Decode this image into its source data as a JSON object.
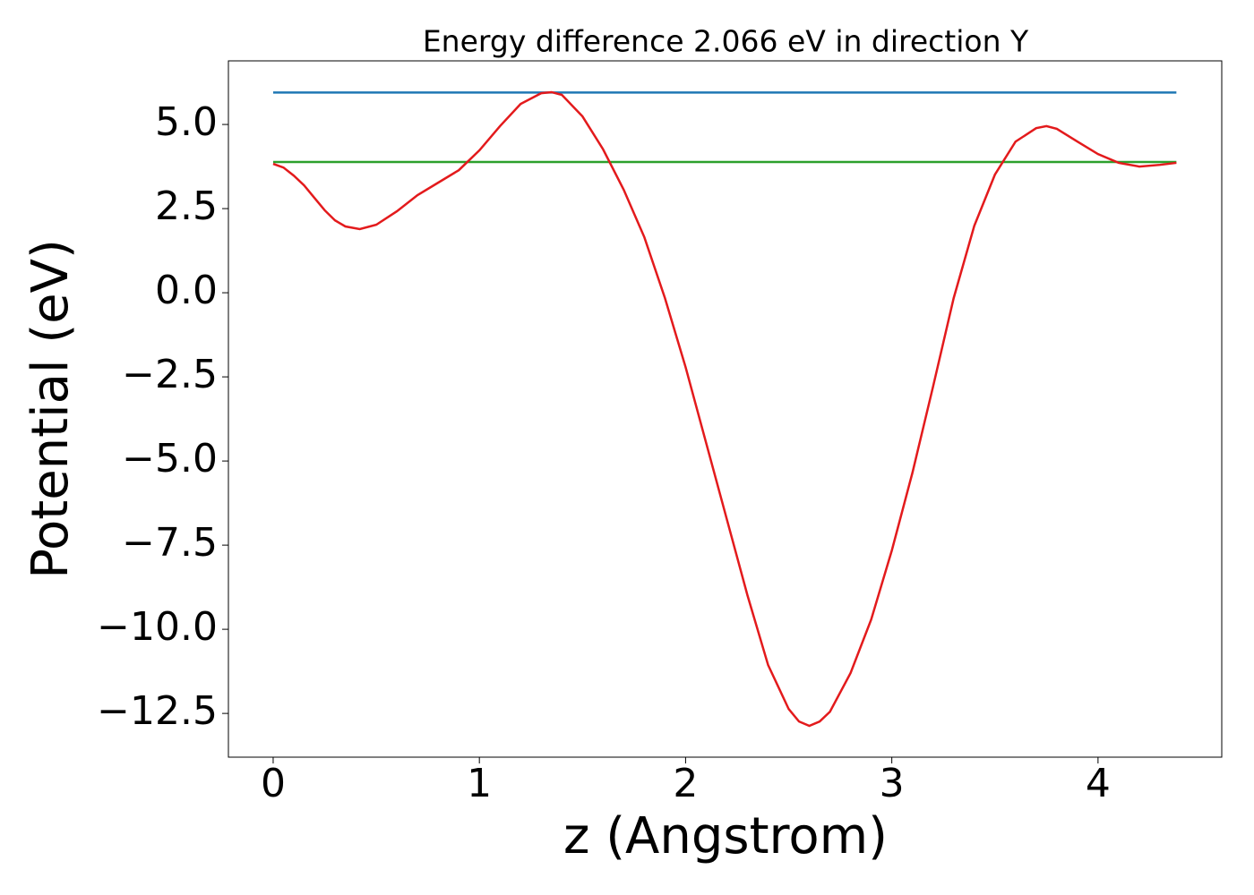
{
  "chart_data": {
    "type": "line",
    "title": "Energy difference 2.066 eV in direction Y",
    "xlabel": "z (Angstrom)",
    "ylabel": "Potential (eV)",
    "xlim": [
      -0.217,
      4.6
    ],
    "ylim": [
      -13.8,
      6.89
    ],
    "xticks": [
      0,
      1,
      2,
      3,
      4
    ],
    "yticks": [
      {
        "value": 5,
        "label": "5.0"
      },
      {
        "value": 2.5,
        "label": "2.5"
      },
      {
        "value": 0,
        "label": "0.0"
      },
      {
        "value": -2.5,
        "label": "−2.5"
      },
      {
        "value": -5,
        "label": "−5.0"
      },
      {
        "value": -7.5,
        "label": "−7.5"
      },
      {
        "value": -10,
        "label": "−10.0"
      },
      {
        "value": -12.5,
        "label": "−12.5"
      }
    ],
    "series": [
      {
        "color": "#1f77b4",
        "x": [
          0,
          4.38
        ],
        "values": [
          5.95,
          5.95
        ]
      },
      {
        "color": "#2ca02c",
        "x": [
          0,
          4.38
        ],
        "values": [
          3.884,
          3.884
        ]
      },
      {
        "color": "#e31a1c",
        "x": [
          0,
          0.05,
          0.1,
          0.15,
          0.2,
          0.25,
          0.3,
          0.35,
          0.42,
          0.5,
          0.6,
          0.7,
          0.8,
          0.9,
          1.0,
          1.1,
          1.2,
          1.3,
          1.35,
          1.4,
          1.5,
          1.6,
          1.7,
          1.8,
          1.9,
          2.0,
          2.1,
          2.2,
          2.3,
          2.4,
          2.5,
          2.55,
          2.6,
          2.65,
          2.7,
          2.8,
          2.9,
          3.0,
          3.1,
          3.2,
          3.3,
          3.4,
          3.5,
          3.6,
          3.7,
          3.75,
          3.8,
          3.9,
          4.0,
          4.1,
          4.2,
          4.3,
          4.38
        ],
        "values": [
          3.83,
          3.72,
          3.48,
          3.19,
          2.82,
          2.45,
          2.15,
          1.97,
          1.89,
          2.02,
          2.42,
          2.9,
          3.27,
          3.64,
          4.23,
          4.95,
          5.61,
          5.93,
          5.96,
          5.88,
          5.24,
          4.26,
          3.06,
          1.65,
          -0.16,
          -2.21,
          -4.47,
          -6.73,
          -8.99,
          -11.06,
          -12.37,
          -12.74,
          -12.87,
          -12.74,
          -12.45,
          -11.3,
          -9.71,
          -7.66,
          -5.35,
          -2.79,
          -0.16,
          1.99,
          3.51,
          4.49,
          4.89,
          4.95,
          4.87,
          4.49,
          4.12,
          3.86,
          3.75,
          3.8,
          3.86
        ]
      }
    ]
  }
}
